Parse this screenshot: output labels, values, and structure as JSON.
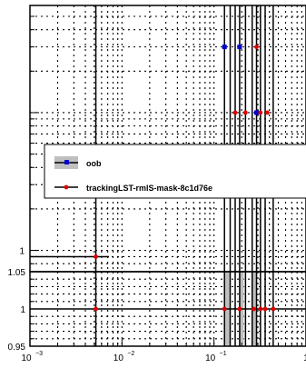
{
  "chart_data": [
    {
      "type": "scatter",
      "panel": "upper",
      "x_scale": "log",
      "y_scale": "log",
      "xlim": [
        0.001,
        1
      ],
      "grid": true,
      "y_tick_labels": [
        "1"
      ],
      "legend": {
        "placement": "middle-left",
        "entries": [
          "oob",
          "trackingLST-rmlS-mask-8c1d76e"
        ]
      },
      "series": [
        {
          "name": "oob",
          "color": "#0000cc",
          "marker": "square",
          "x": [
            0.13,
            0.19,
            0.29
          ],
          "y": [
            30,
            30,
            10
          ],
          "uncertainty_band_color": "#bfbfbf"
        },
        {
          "name": "trackingLST-rmlS-mask-8c1d76e",
          "color": "#e00000",
          "marker": "circle",
          "x": [
            0.0052,
            0.17,
            0.22,
            0.29,
            0.32,
            0.38
          ],
          "y": [
            0.9,
            10,
            10,
            30,
            10,
            10
          ]
        }
      ]
    },
    {
      "type": "scatter",
      "panel": "ratio",
      "x_scale": "log",
      "xlim": [
        0.001,
        1
      ],
      "ylim": [
        0.95,
        1.05
      ],
      "grid": true,
      "y_tick_labels": [
        "0.95",
        "1",
        "1.05"
      ],
      "x_tick_labels": [
        "10",
        "10",
        "10",
        "1"
      ],
      "x_tick_exponents": [
        "−3",
        "−2",
        "−1",
        ""
      ],
      "series": [
        {
          "name": "trackingLST-rmlS-mask-8c1d76e",
          "color": "#e00000",
          "x": [
            0.0052,
            0.13,
            0.19,
            0.27,
            0.32,
            0.36,
            0.44
          ],
          "y": [
            1,
            1,
            1,
            1,
            1,
            1,
            1
          ]
        }
      ],
      "band_color": "#bfbfbf"
    }
  ]
}
